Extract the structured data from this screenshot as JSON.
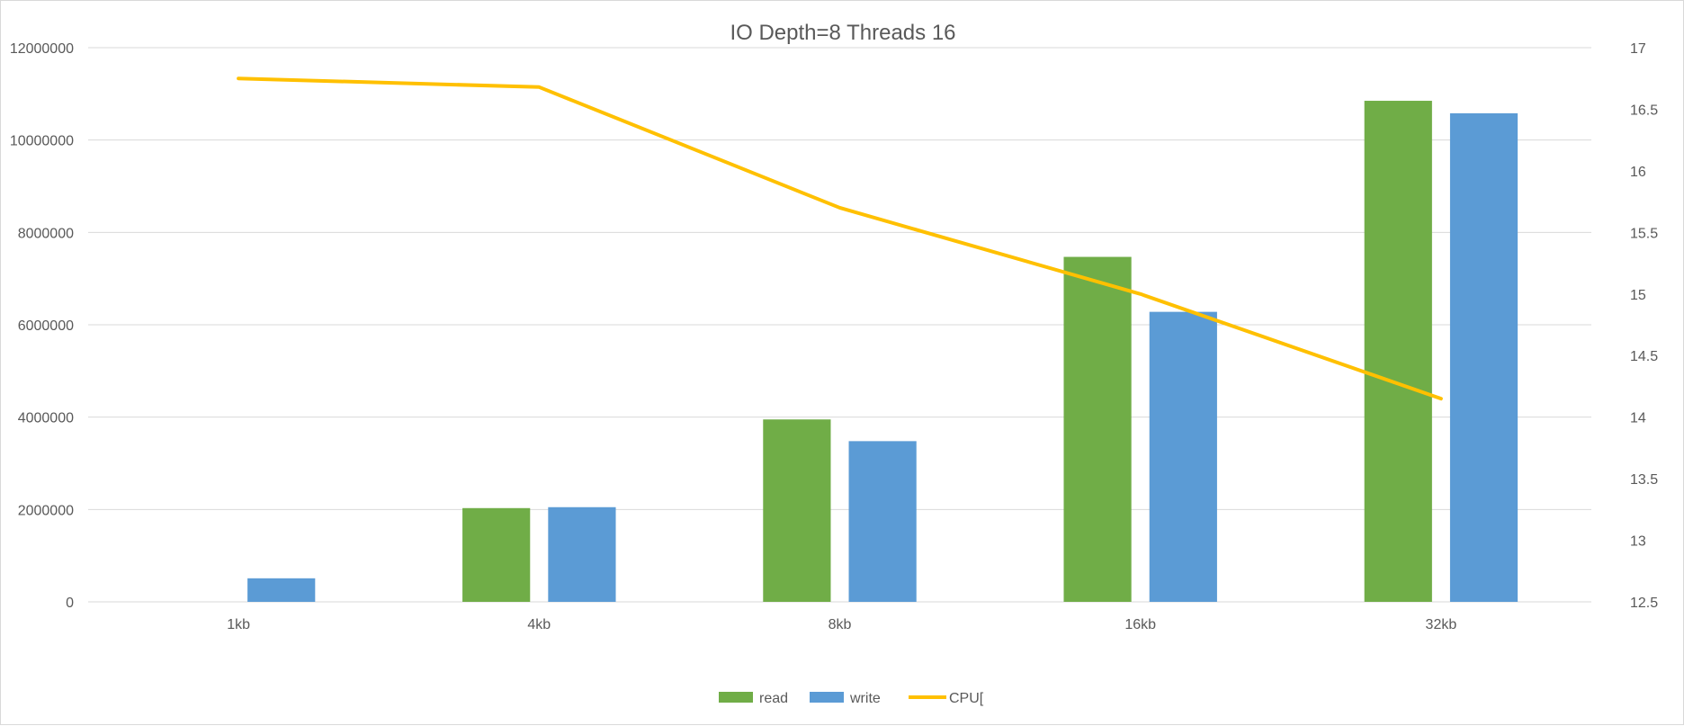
{
  "chart_data": {
    "type": "bar",
    "title": "IO Depth=8   Threads 16",
    "categories": [
      "1kb",
      "4kb",
      "8kb",
      "16kb",
      "32kb"
    ],
    "series": [
      {
        "name": "read",
        "kind": "bar",
        "axis": "left",
        "color": "#70ad47",
        "values": [
          0,
          2030000,
          3950000,
          7470000,
          10850000
        ]
      },
      {
        "name": "write",
        "kind": "bar",
        "axis": "left",
        "color": "#5b9bd5",
        "values": [
          510000,
          2050000,
          3480000,
          6280000,
          10580000
        ]
      },
      {
        "name": "CPU[",
        "kind": "line",
        "axis": "right",
        "color": "#ffc000",
        "values": [
          16.75,
          16.68,
          15.7,
          15.0,
          14.15
        ]
      }
    ],
    "y_left": {
      "min": 0,
      "max": 12000000,
      "ticks": [
        "0",
        "2000000",
        "4000000",
        "6000000",
        "8000000",
        "10000000",
        "12000000"
      ]
    },
    "y_right": {
      "min": 12.5,
      "max": 17,
      "ticks": [
        "12.5",
        "13",
        "13.5",
        "14",
        "14.5",
        "15",
        "15.5",
        "16",
        "16.5",
        "17"
      ]
    },
    "grid": true,
    "legend_position": "bottom"
  }
}
